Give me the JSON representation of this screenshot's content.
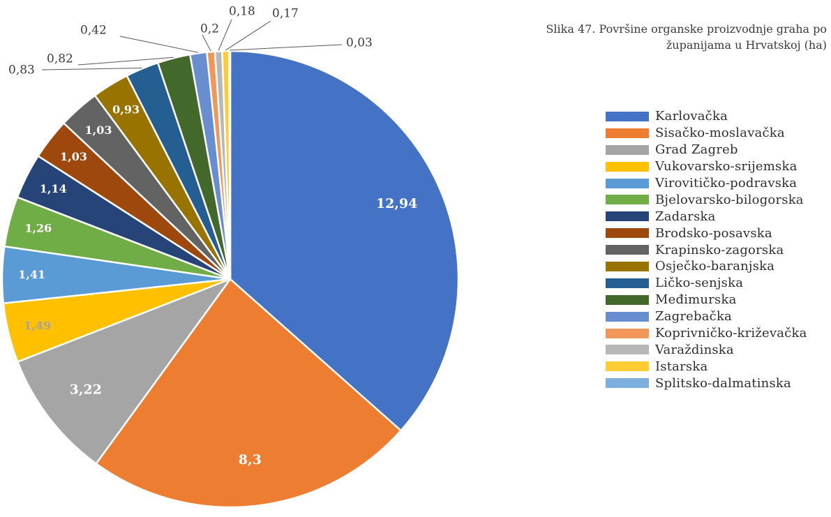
{
  "caption": {
    "line1": "Slika 47. Površine organske proizvodnje graha po",
    "line2": "županijama u Hrvatskoj (ha)"
  },
  "chart_data": {
    "type": "pie",
    "title": "Slika 47. Površine organske proizvodnje graha po županijama u Hrvatskoj (ha)",
    "legend_position": "right",
    "start": "12 o'clock, clockwise",
    "slices": [
      {
        "name": "Karlovačka",
        "value": 12.94,
        "label": "12,94",
        "color": "#4472c4",
        "label_style": "inside",
        "label_color": "#ffffff"
      },
      {
        "name": "Sisačko-moslavačka",
        "value": 8.3,
        "label": "8,3",
        "color": "#ed7d31",
        "label_style": "inside",
        "label_color": "#ffffff"
      },
      {
        "name": "Grad Zagreb",
        "value": 3.22,
        "label": "3,22",
        "color": "#a5a5a5",
        "label_style": "inside",
        "label_color": "#ffffff"
      },
      {
        "name": "Vukovarsko-srijemska",
        "value": 1.49,
        "label": "1,49",
        "color": "#ffc000",
        "label_style": "inside",
        "label_color": "#a5a5a5"
      },
      {
        "name": "Virovitičko-podravska",
        "value": 1.41,
        "label": "1,41",
        "color": "#5b9bd5",
        "label_style": "inside",
        "label_color": "#ffffff"
      },
      {
        "name": "Bjelovarsko-bilogorska",
        "value": 1.26,
        "label": "1,26",
        "color": "#70ad47",
        "label_style": "inside",
        "label_color": "#ffffff"
      },
      {
        "name": "Zadarska",
        "value": 1.14,
        "label": "1,14",
        "color": "#264478",
        "label_style": "inside",
        "label_color": "#ffffff"
      },
      {
        "name": "Brodsko-posavska",
        "value": 1.03,
        "label": "1,03",
        "color": "#9e480e",
        "label_style": "inside",
        "label_color": "#ffffff"
      },
      {
        "name": "Krapinsko-zagorska",
        "value": 1.03,
        "label": "1,03",
        "color": "#636363",
        "label_style": "inside",
        "label_color": "#ffffff"
      },
      {
        "name": "Osječko-baranjska",
        "value": 0.93,
        "label": "0,93",
        "color": "#997300",
        "label_style": "inside",
        "label_color": "#ffffff"
      },
      {
        "name": "Ličko-senjska",
        "value": 0.83,
        "label": "0,83",
        "color": "#255e91",
        "label_style": "leader",
        "label_color": "#3a3a3a"
      },
      {
        "name": "Međimurska",
        "value": 0.82,
        "label": "0,82",
        "color": "#43682b",
        "label_style": "leader",
        "label_color": "#3a3a3a"
      },
      {
        "name": "Zagrebačka",
        "value": 0.42,
        "label": "0,42",
        "color": "#698ed0",
        "label_style": "leader",
        "label_color": "#3a3a3a"
      },
      {
        "name": "Koprivničko-križevačka",
        "value": 0.2,
        "label": "0,2",
        "color": "#f1975a",
        "label_style": "leader",
        "label_color": "#3a3a3a"
      },
      {
        "name": "Varaždinska",
        "value": 0.18,
        "label": "0,18",
        "color": "#b7b7b7",
        "label_style": "leader",
        "label_color": "#3a3a3a"
      },
      {
        "name": "Istarska",
        "value": 0.17,
        "label": "0,17",
        "color": "#ffcd33",
        "label_style": "leader",
        "label_color": "#3a3a3a"
      },
      {
        "name": "Splitsko-dalmatinska",
        "value": 0.03,
        "label": "0,03",
        "color": "#7cafdd",
        "label_style": "leader",
        "label_color": "#3a3a3a"
      }
    ]
  }
}
